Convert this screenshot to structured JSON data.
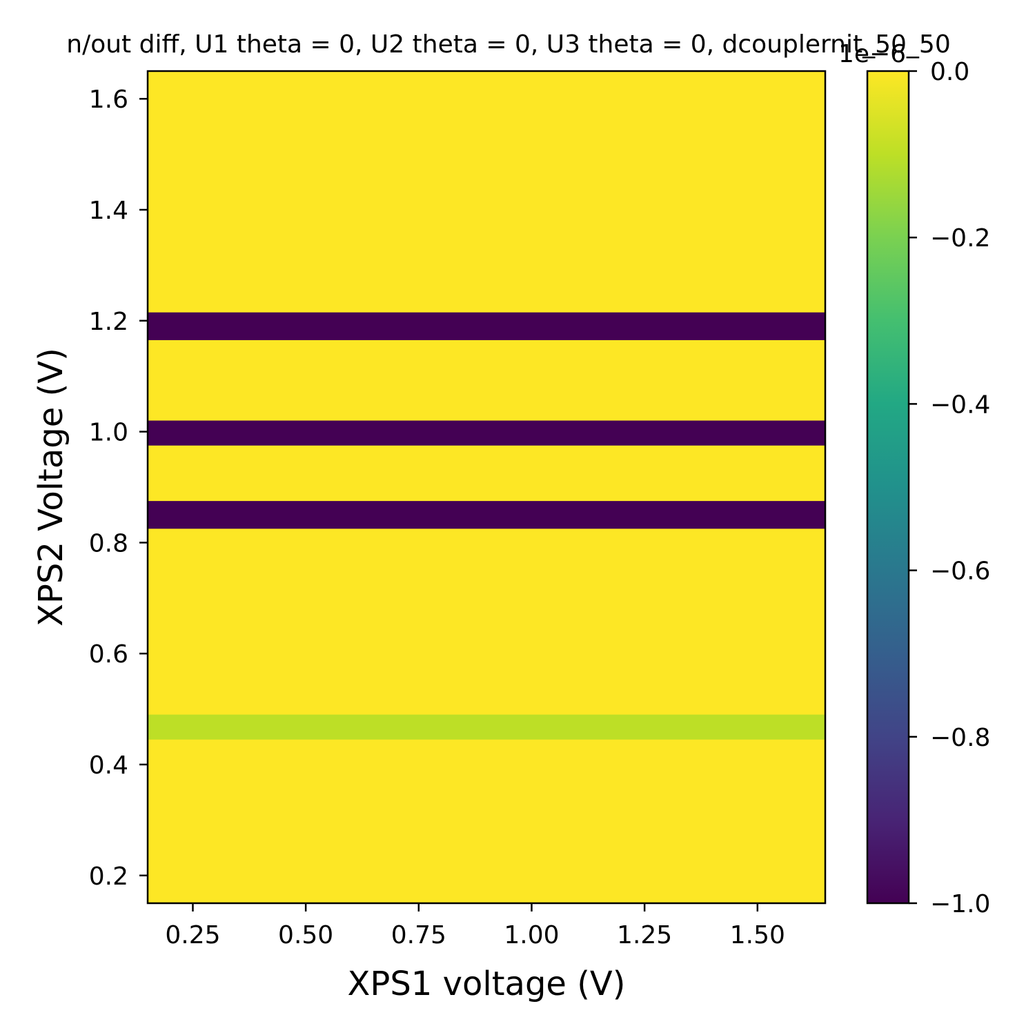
{
  "chart_data": {
    "type": "heatmap",
    "title": "n/out diff, U1 theta = 0, U2 theta = 0, U3 theta = 0, dcouplernit_50_50",
    "xlabel": "XPS1 voltage (V)",
    "ylabel": "XPS2 Voltage (V)",
    "xlim": [
      0.15,
      1.65
    ],
    "ylim": [
      0.15,
      1.65
    ],
    "grid": false,
    "colormap": "viridis",
    "colorbar": {
      "range": [
        -1.0,
        0.0
      ],
      "ticks": [
        0.0,
        -0.2,
        -0.4,
        -0.6,
        -0.8,
        -1.0
      ],
      "tick_labels": [
        "0.0",
        "−0.2",
        "−0.4",
        "−0.6",
        "−0.8",
        "−1.0"
      ],
      "offset_label": "1e−6"
    },
    "x_ticks": [
      0.25,
      0.5,
      0.75,
      1.0,
      1.25,
      1.5
    ],
    "x_tick_labels": [
      "0.25",
      "0.50",
      "0.75",
      "1.00",
      "1.25",
      "1.50"
    ],
    "y_ticks": [
      0.2,
      0.4,
      0.6,
      0.8,
      1.0,
      1.2,
      1.4,
      1.6
    ],
    "y_tick_labels": [
      "0.2",
      "0.4",
      "0.6",
      "0.8",
      "1.0",
      "1.2",
      "1.4",
      "1.6"
    ],
    "background_value": 0.0,
    "bands": [
      {
        "y_from": 0.445,
        "y_to": 0.49,
        "value": -0.1
      },
      {
        "y_from": 0.825,
        "y_to": 0.875,
        "value": -1.0
      },
      {
        "y_from": 0.975,
        "y_to": 1.02,
        "value": -1.0
      },
      {
        "y_from": 1.165,
        "y_to": 1.215,
        "value": -1.0
      }
    ]
  }
}
